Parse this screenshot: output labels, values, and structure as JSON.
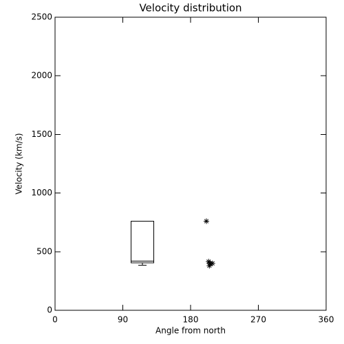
{
  "chart_data": {
    "type": "box-scatter",
    "title": "Velocity distribution",
    "x_label": "Angle from north",
    "y_label": "Velocity (km/s)",
    "xlim": [
      0,
      360
    ],
    "ylim": [
      0,
      2500
    ],
    "xticks": [
      0,
      90,
      180,
      270,
      360
    ],
    "yticks": [
      0,
      500,
      1000,
      1500,
      2000,
      2500
    ],
    "color": "#000000",
    "box": {
      "x": 116,
      "width": 30,
      "min": 385,
      "q1": 405,
      "median": 420,
      "q3": 760,
      "max": 760
    },
    "points": {
      "x": [
        201,
        204,
        206,
        209,
        205
      ],
      "y": [
        760,
        415,
        400,
        400,
        380
      ]
    }
  }
}
